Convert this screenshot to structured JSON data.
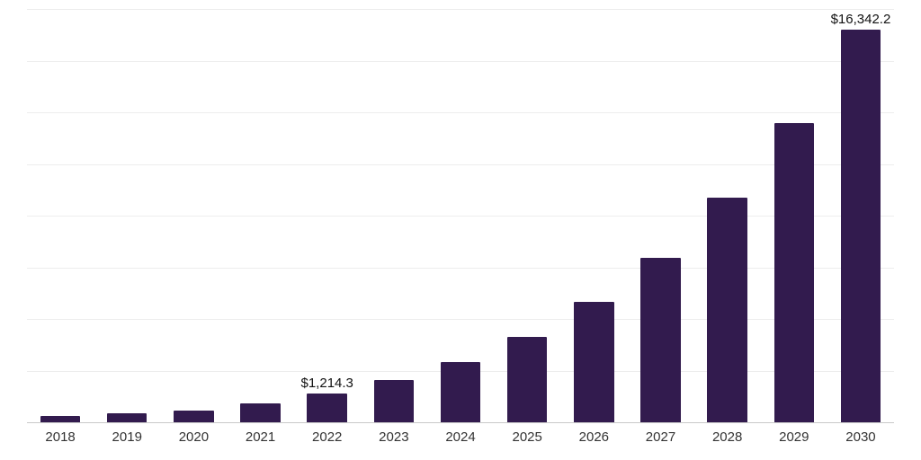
{
  "chart_data": {
    "type": "bar",
    "title": "",
    "xlabel": "",
    "ylabel": "",
    "categories": [
      "2018",
      "2019",
      "2020",
      "2021",
      "2022",
      "2023",
      "2024",
      "2025",
      "2026",
      "2027",
      "2028",
      "2029",
      "2030"
    ],
    "values": [
      280,
      390,
      470,
      800,
      1214.3,
      1750,
      2500,
      3550,
      5000,
      6850,
      9350,
      12450,
      16342.2
    ],
    "data_labels": {
      "2022": "$1,214.3",
      "2030": "$16,342.2"
    },
    "ylim": [
      0,
      17200
    ],
    "grid": true,
    "gridline_count": 8,
    "legend": "none",
    "bar_color": "#321b4e",
    "gridline_color": "#ededed",
    "axis_line_color": "#c9c9c9",
    "label_color": "#111111",
    "tick_label_color": "#333333"
  }
}
